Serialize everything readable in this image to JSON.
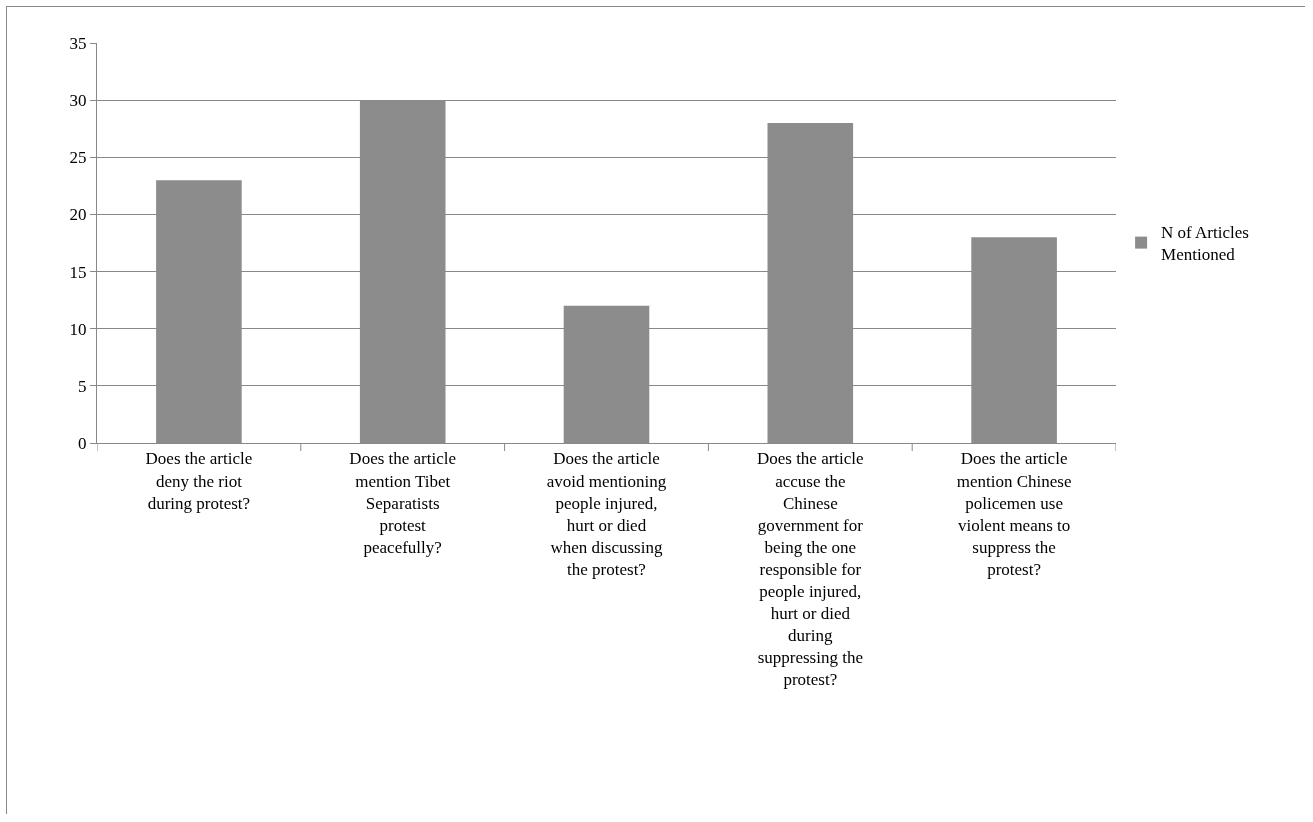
{
  "chart_data": {
    "type": "bar",
    "categories": [
      "Does the article deny the riot during protest?",
      "Does the article mention Tibet Separatists protest peacefully?",
      "Does the article avoid mentioning people injured, hurt or died when discussing the protest?",
      "Does the article accuse the Chinese government for being the one responsible for people injured, hurt or died during suppressing the protest?",
      "Does the article mention Chinese policemen use violent means to suppress the protest?"
    ],
    "series": [
      {
        "name": "N of Articles Mentioned",
        "color": "#8c8c8c",
        "values": [
          23,
          30,
          12,
          28,
          18
        ]
      }
    ],
    "ylim": [
      0,
      35
    ],
    "yticks": [
      0,
      5,
      10,
      15,
      20,
      25,
      30,
      35
    ],
    "grid": "y",
    "legend": "right"
  }
}
